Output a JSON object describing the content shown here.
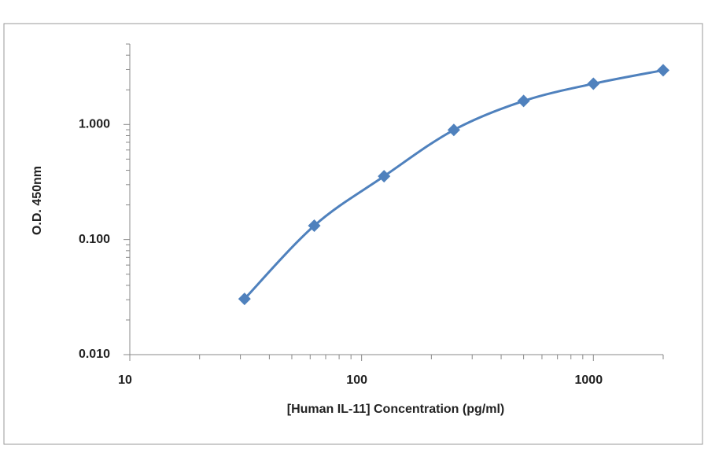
{
  "chart_data": {
    "type": "line",
    "x_label": "[Human IL-11]  Concentration (pg/ml)",
    "y_label": "O.D. 450nm",
    "x": [
      31.25,
      62.5,
      125,
      250,
      500,
      1000,
      2000
    ],
    "series": [
      {
        "color": "#4f81bd",
        "values": [
          0.0305,
          0.132,
          0.355,
          0.896,
          1.6,
          2.26,
          2.96
        ]
      }
    ],
    "xlog": true,
    "ylog": true,
    "xlim": [
      10,
      2000
    ],
    "ylim": [
      0.01,
      5
    ],
    "xticks": [
      10,
      100,
      1000
    ],
    "yticks": [
      {
        "value": 0.01,
        "label": "0.010"
      },
      {
        "value": 0.1,
        "label": "0.100"
      },
      {
        "value": 1,
        "label": "1.000"
      }
    ],
    "xminorticks": [
      20,
      30,
      40,
      50,
      60,
      70,
      80,
      90,
      200,
      300,
      400,
      500,
      600,
      700,
      800,
      900,
      2000
    ],
    "yminorticks": [
      0.02,
      0.03,
      0.04,
      0.05,
      0.06,
      0.07,
      0.08,
      0.09,
      0.2,
      0.3,
      0.4,
      0.5,
      0.6,
      0.7,
      0.8,
      0.9,
      2,
      3,
      4,
      5
    ],
    "smooth": true
  }
}
